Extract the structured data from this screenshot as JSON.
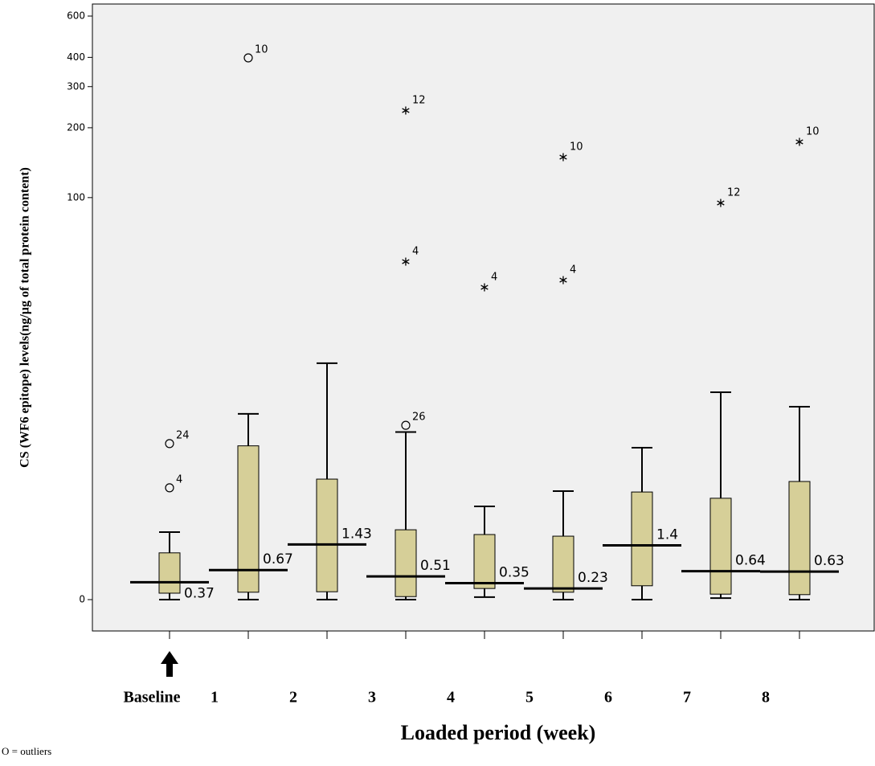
{
  "chart_data": {
    "type": "box",
    "y_label": "CS (WF6 epitope) levels(ng/µg of total protein content)",
    "x_label": "Loaded period (week)",
    "note": "O = outliers",
    "log_scale": true,
    "color": "#d6cf98",
    "categories": [
      "Baseline",
      "1",
      "2",
      "3",
      "4",
      "5",
      "6",
      "7",
      "8"
    ],
    "ylim": [
      0,
      600
    ],
    "yticks": [
      0,
      100,
      200,
      300,
      400,
      600
    ],
    "boxes": [
      {
        "whisker_low": 0,
        "q1": 0.13,
        "median": 0.37,
        "q3": 1.16,
        "whisker_high": 1.87,
        "outliers": [
          {
            "value": 7.2,
            "label": "24",
            "marker": "circle"
          },
          {
            "value": 3.97,
            "label": "4",
            "marker": "circle"
          }
        ]
      },
      {
        "whisker_low": 0,
        "q1": 0.15,
        "median": 0.67,
        "q3": 7.0,
        "whisker_high": 10.3,
        "outliers": [
          {
            "value": 398,
            "label": "10",
            "marker": "circle"
          }
        ]
      },
      {
        "whisker_low": 0,
        "q1": 0.16,
        "median": 1.43,
        "q3": 4.5,
        "whisker_high": 18.2,
        "outliers": []
      },
      {
        "whisker_low": 0,
        "q1": 0.06,
        "median": 0.51,
        "q3": 1.96,
        "whisker_high": 8.3,
        "outliers": [
          {
            "value": 9.0,
            "label": "26",
            "marker": "circle"
          },
          {
            "value": 53.6,
            "label": "4",
            "marker": "star"
          },
          {
            "value": 241.6,
            "label": "12",
            "marker": "star"
          }
        ]
      },
      {
        "whisker_low": 0.05,
        "q1": 0.23,
        "median": 0.35,
        "q3": 1.78,
        "whisker_high": 2.98,
        "outliers": [
          {
            "value": 41.3,
            "label": "4",
            "marker": "star"
          }
        ]
      },
      {
        "whisker_low": 0,
        "q1": 0.15,
        "median": 0.23,
        "q3": 1.72,
        "whisker_high": 3.78,
        "outliers": [
          {
            "value": 152.6,
            "label": "10",
            "marker": "star"
          },
          {
            "value": 44.4,
            "label": "4",
            "marker": "star"
          }
        ]
      },
      {
        "whisker_low": 0,
        "q1": 0.29,
        "median": 1.4,
        "q3": 3.73,
        "whisker_high": 6.84,
        "outliers": []
      },
      {
        "whisker_low": 0.03,
        "q1": 0.11,
        "median": 0.64,
        "q3": 3.39,
        "whisker_high": 13.2,
        "outliers": [
          {
            "value": 96.8,
            "label": "12",
            "marker": "star"
          }
        ]
      },
      {
        "whisker_low": 0,
        "q1": 0.1,
        "median": 0.63,
        "q3": 4.35,
        "whisker_high": 11.2,
        "outliers": [
          {
            "value": 177.5,
            "label": "10",
            "marker": "star"
          }
        ]
      }
    ]
  }
}
